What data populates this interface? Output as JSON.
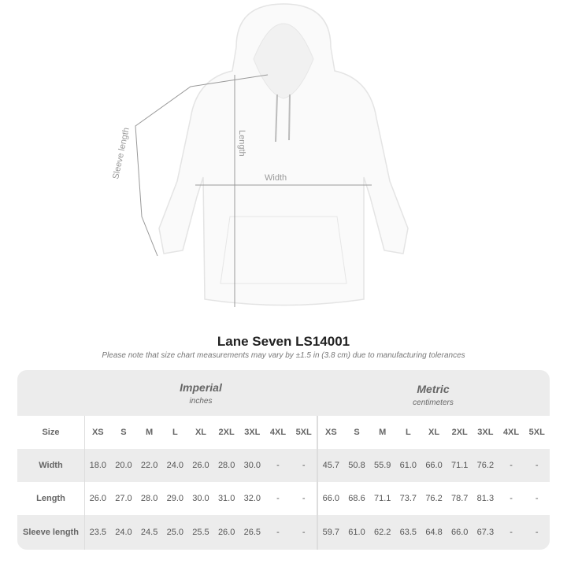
{
  "diagram": {
    "length_label": "Length",
    "width_label": "Width",
    "sleeve_label": "Sleeve length"
  },
  "title": "Lane Seven LS14001",
  "note": "Please note that size chart measurements may vary by ±1.5 in (3.8 cm) due to manufacturing tolerances",
  "imperial": {
    "name": "Imperial",
    "unit": "inches"
  },
  "metric": {
    "name": "Metric",
    "unit": "centimeters"
  },
  "size_label": "Size",
  "sizes": [
    "XS",
    "S",
    "M",
    "L",
    "XL",
    "2XL",
    "3XL",
    "4XL",
    "5XL"
  ],
  "rows": [
    {
      "label": "Width",
      "imperial": [
        "18.0",
        "20.0",
        "22.0",
        "24.0",
        "26.0",
        "28.0",
        "30.0",
        "-",
        "-"
      ],
      "metric": [
        "45.7",
        "50.8",
        "55.9",
        "61.0",
        "66.0",
        "71.1",
        "76.2",
        "-",
        "-"
      ]
    },
    {
      "label": "Length",
      "imperial": [
        "26.0",
        "27.0",
        "28.0",
        "29.0",
        "30.0",
        "31.0",
        "32.0",
        "-",
        "-"
      ],
      "metric": [
        "66.0",
        "68.6",
        "71.1",
        "73.7",
        "76.2",
        "78.7",
        "81.3",
        "-",
        "-"
      ]
    },
    {
      "label": "Sleeve length",
      "imperial": [
        "23.5",
        "24.0",
        "24.5",
        "25.0",
        "25.5",
        "26.0",
        "26.5",
        "-",
        "-"
      ],
      "metric": [
        "59.7",
        "61.0",
        "62.2",
        "63.5",
        "64.8",
        "66.0",
        "67.3",
        "-",
        "-"
      ]
    }
  ]
}
